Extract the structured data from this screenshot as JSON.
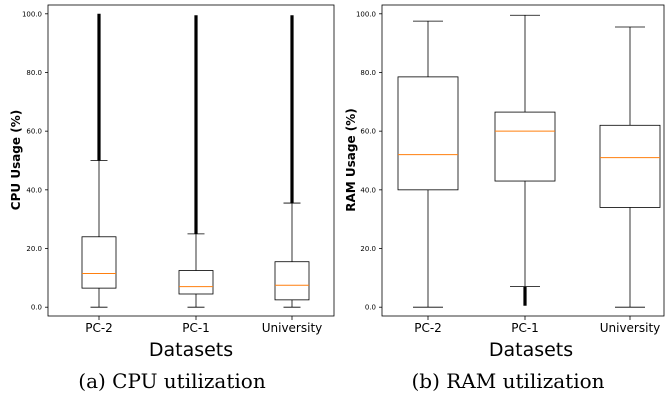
{
  "chart_data": [
    {
      "type": "box",
      "categories": [
        "PC-2",
        "PC-1",
        "University"
      ],
      "xlabel": "Datasets",
      "ylabel": "CPU Usage (%)",
      "ylim": [
        -3,
        103
      ],
      "yticks": [
        0,
        20,
        40,
        60,
        80,
        100
      ],
      "ytick_labels": [
        "0.0",
        "20.0",
        "40.0",
        "60.0",
        "80.0",
        "100.0"
      ],
      "grid": false,
      "caption": "(a) CPU utilization",
      "boxes": [
        {
          "min": 0.0,
          "q1": 6.5,
          "median": 11.5,
          "q3": 24.0,
          "max": 50.0,
          "outlier_range": [
            50.0,
            100.0
          ]
        },
        {
          "min": 0.0,
          "q1": 4.5,
          "median": 7.0,
          "q3": 12.5,
          "max": 25.0,
          "outlier_range": [
            25.0,
            99.5
          ]
        },
        {
          "min": 0.0,
          "q1": 2.5,
          "median": 7.5,
          "q3": 15.5,
          "max": 35.5,
          "outlier_range": [
            35.5,
            99.5
          ]
        }
      ],
      "colors": {
        "box": "#000000",
        "median": "#ff7f0e",
        "outlier": "#000000"
      }
    },
    {
      "type": "box",
      "categories": [
        "PC-2",
        "PC-1",
        "University"
      ],
      "xlabel": "Datasets",
      "ylabel": "RAM Usage (%)",
      "ylim": [
        -3,
        103
      ],
      "yticks": [
        0,
        20,
        40,
        60,
        80,
        100
      ],
      "ytick_labels": [
        "0.0",
        "20.0",
        "40.0",
        "60.0",
        "80.0",
        "100.0"
      ],
      "grid": false,
      "caption": "(b) RAM utilization",
      "boxes": [
        {
          "min": 0.0,
          "q1": 40.0,
          "median": 52.0,
          "q3": 78.5,
          "max": 97.5,
          "outlier_range": null
        },
        {
          "min": 7.0,
          "q1": 43.0,
          "median": 60.0,
          "q3": 66.5,
          "max": 99.5,
          "outlier_range": [
            0.5,
            7.0
          ]
        },
        {
          "min": 0.0,
          "q1": 34.0,
          "median": 51.0,
          "q3": 62.0,
          "max": 95.5,
          "outlier_range": null
        }
      ],
      "colors": {
        "box": "#000000",
        "median": "#ff7f0e",
        "outlier": "#000000"
      }
    }
  ]
}
